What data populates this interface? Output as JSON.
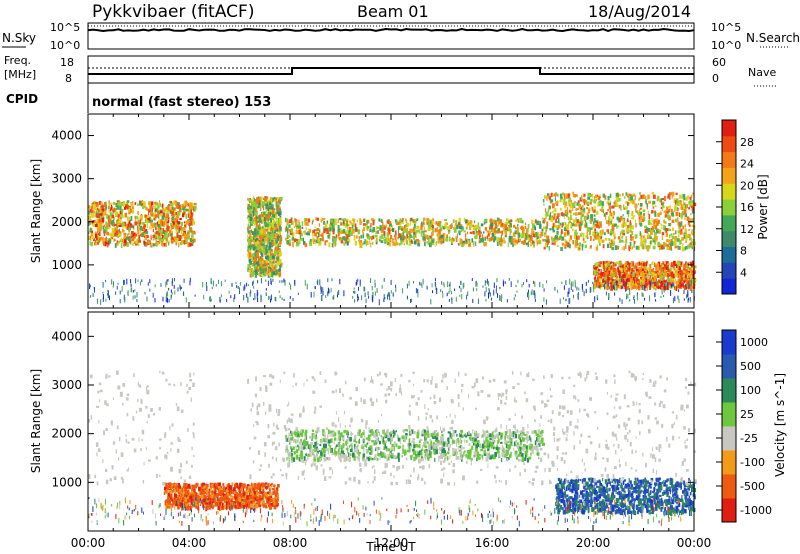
{
  "header": {
    "station": "Pykkvibaer (fitACF)",
    "beam": "Beam 01",
    "date": "18/Aug/2014"
  },
  "nsky_panel": {
    "left_label": "N.Sky",
    "left_ticks": [
      "10^5",
      "10^0"
    ],
    "right_ticks": [
      "10^5",
      "10^0"
    ],
    "right_label": "N.Search"
  },
  "freq_panel": {
    "left_label_line1": "Freq.",
    "left_label_line2": "[MHz]",
    "left_ticks": [
      "18",
      "8"
    ],
    "right_ticks": [
      "60",
      "0"
    ],
    "right_label": "Nave"
  },
  "cpid": {
    "label": "CPID",
    "text": "normal (fast stereo) 153"
  },
  "colors": {
    "power": [
      "#1226d8",
      "#2246b8",
      "#1b6e9a",
      "#3d8a6a",
      "#43a857",
      "#8ad03a",
      "#d6d61c",
      "#f4a21c",
      "#f37a16",
      "#ee4a14",
      "#e01e12"
    ],
    "velocity": [
      "#e01e12",
      "#ee5a12",
      "#f49a1a",
      "#c8c8c0",
      "#6cc83c",
      "#2a8a5a",
      "#2a5ab0",
      "#1a3ad0"
    ]
  },
  "chart_data": [
    {
      "type": "heatmap",
      "name": "power",
      "ylabel": "Slant Range [km]",
      "yticks": [
        "1000",
        "2000",
        "3000",
        "4000"
      ],
      "ylim": [
        0,
        4500
      ],
      "xlim_hours": [
        0,
        24
      ],
      "colorbar_label": "Power [dB]",
      "colorbar_ticks": [
        "4",
        "8",
        "12",
        "16",
        "20",
        "24",
        "28"
      ],
      "colorbar_range": [
        0,
        32
      ],
      "features": [
        {
          "t": [
            0.0,
            4.2
          ],
          "r": [
            1500,
            2500
          ],
          "level": 0.7
        },
        {
          "t": [
            6.3,
            7.6
          ],
          "r": [
            800,
            2600
          ],
          "level": 0.55
        },
        {
          "t": [
            7.8,
            18.0
          ],
          "r": [
            1500,
            2100
          ],
          "level": 0.6
        },
        {
          "t": [
            18.0,
            24.0
          ],
          "r": [
            1400,
            2700
          ],
          "level": 0.65
        },
        {
          "t": [
            20.0,
            24.0
          ],
          "r": [
            500,
            1100
          ],
          "level": 0.8
        }
      ]
    },
    {
      "type": "heatmap",
      "name": "velocity",
      "ylabel": "Slant Range [km]",
      "yticks": [
        "1000",
        "2000",
        "3000",
        "4000"
      ],
      "ylim": [
        0,
        4500
      ],
      "xlim_hours": [
        0,
        24
      ],
      "xticks": [
        "00:00",
        "04:00",
        "08:00",
        "12:00",
        "16:00",
        "20:00",
        "00:00"
      ],
      "xlabel": "Time UT",
      "colorbar_label": "Velocity [m s^-1]",
      "colorbar_ticks": [
        "1000",
        "500",
        "100",
        "25",
        "-25",
        "-100",
        "-500",
        "-1000"
      ],
      "features": [
        {
          "t": [
            3.0,
            7.5
          ],
          "r": [
            500,
            1000
          ],
          "class": "-500"
        },
        {
          "t": [
            7.8,
            18.0
          ],
          "r": [
            1500,
            2100
          ],
          "class": "25"
        },
        {
          "t": [
            18.5,
            24.0
          ],
          "r": [
            400,
            1100
          ],
          "class": "500"
        }
      ]
    }
  ]
}
